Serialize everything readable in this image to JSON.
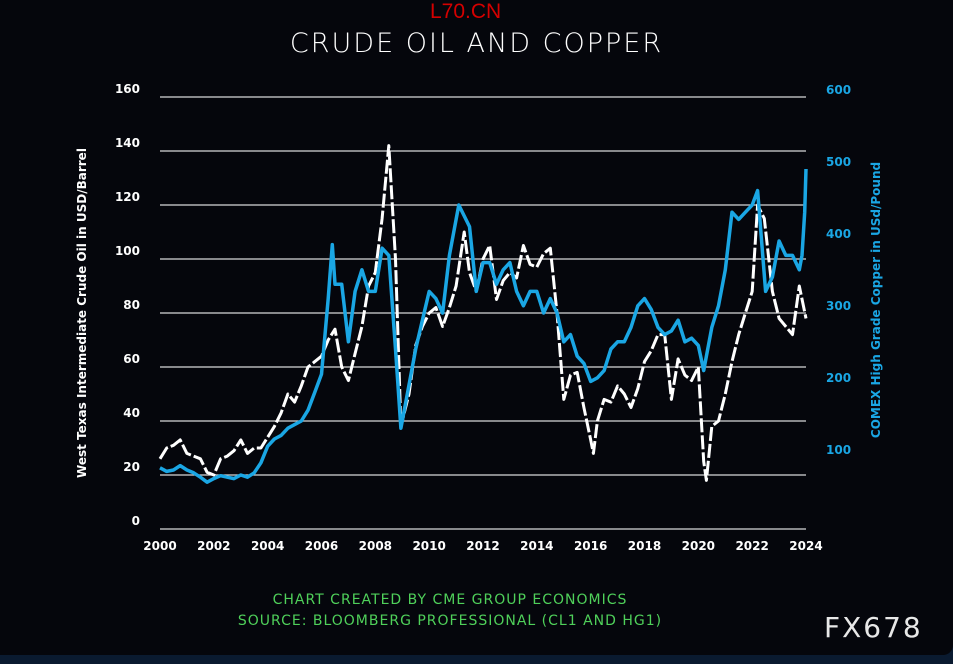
{
  "watermark": "L70.CN",
  "footer": {
    "credit": "CHART CREATED BY CME GROUP ECONOMICS",
    "source": "SOURCE: BLOOMBERG PROFESSIONAL (CL1 AND HG1)",
    "code": "FX678"
  },
  "colors": {
    "oil": "#ffffff",
    "copper": "#1aa6e4",
    "credit": "#4fd05a",
    "background": "#05060c"
  },
  "chart_data": {
    "type": "line",
    "title": "CRUDE OIL AND COPPER",
    "xlabel": "",
    "ylabel": "West Texas Intermediate Crude Oil in USD/Barrel",
    "y2label": "COMEX High Grade Copper in USd/Pound",
    "xlim": [
      2000,
      2024
    ],
    "ylim": [
      0,
      160
    ],
    "y2lim": [
      0,
      600
    ],
    "xticks": [
      "2000",
      "2002",
      "2004",
      "2006",
      "2008",
      "2010",
      "2012",
      "2014",
      "2016",
      "2018",
      "2020",
      "2022",
      "2024"
    ],
    "yticks": [
      "0",
      "20",
      "40",
      "60",
      "80",
      "100",
      "120",
      "140",
      "160"
    ],
    "y2ticks": [
      "100",
      "200",
      "300",
      "400",
      "500",
      "600"
    ],
    "grid": true,
    "series": [
      {
        "name": "WTI Crude Oil",
        "axis": "left",
        "style": "dashed",
        "points": [
          [
            2000,
            26
          ],
          [
            2000.25,
            30
          ],
          [
            2000.5,
            31
          ],
          [
            2000.75,
            33
          ],
          [
            2001,
            28
          ],
          [
            2001.25,
            27
          ],
          [
            2001.5,
            26
          ],
          [
            2001.75,
            21
          ],
          [
            2002,
            20
          ],
          [
            2002.25,
            26
          ],
          [
            2002.5,
            27
          ],
          [
            2002.75,
            29
          ],
          [
            2003,
            33
          ],
          [
            2003.25,
            28
          ],
          [
            2003.5,
            30
          ],
          [
            2003.75,
            30
          ],
          [
            2004,
            34
          ],
          [
            2004.25,
            38
          ],
          [
            2004.5,
            43
          ],
          [
            2004.75,
            50
          ],
          [
            2005,
            47
          ],
          [
            2005.25,
            53
          ],
          [
            2005.5,
            60
          ],
          [
            2005.75,
            62
          ],
          [
            2006,
            64
          ],
          [
            2006.25,
            70
          ],
          [
            2006.5,
            74
          ],
          [
            2006.75,
            60
          ],
          [
            2007,
            55
          ],
          [
            2007.25,
            65
          ],
          [
            2007.5,
            75
          ],
          [
            2007.75,
            90
          ],
          [
            2008,
            95
          ],
          [
            2008.25,
            115
          ],
          [
            2008.5,
            142
          ],
          [
            2008.75,
            100
          ],
          [
            2008.95,
            38
          ],
          [
            2009.25,
            50
          ],
          [
            2009.5,
            68
          ],
          [
            2009.75,
            75
          ],
          [
            2010,
            80
          ],
          [
            2010.25,
            82
          ],
          [
            2010.5,
            75
          ],
          [
            2010.75,
            82
          ],
          [
            2011,
            90
          ],
          [
            2011.3,
            110
          ],
          [
            2011.5,
            95
          ],
          [
            2011.75,
            88
          ],
          [
            2012,
            100
          ],
          [
            2012.25,
            105
          ],
          [
            2012.5,
            85
          ],
          [
            2012.75,
            92
          ],
          [
            2013,
            95
          ],
          [
            2013.25,
            93
          ],
          [
            2013.5,
            105
          ],
          [
            2013.75,
            98
          ],
          [
            2014,
            97
          ],
          [
            2014.25,
            102
          ],
          [
            2014.5,
            104
          ],
          [
            2014.75,
            80
          ],
          [
            2015,
            48
          ],
          [
            2015.25,
            57
          ],
          [
            2015.5,
            58
          ],
          [
            2015.75,
            45
          ],
          [
            2016,
            33
          ],
          [
            2016.1,
            28
          ],
          [
            2016.25,
            40
          ],
          [
            2016.5,
            48
          ],
          [
            2016.75,
            47
          ],
          [
            2017,
            53
          ],
          [
            2017.25,
            50
          ],
          [
            2017.5,
            45
          ],
          [
            2017.75,
            52
          ],
          [
            2018,
            62
          ],
          [
            2018.25,
            66
          ],
          [
            2018.5,
            72
          ],
          [
            2018.75,
            72
          ],
          [
            2019,
            48
          ],
          [
            2019.25,
            63
          ],
          [
            2019.5,
            57
          ],
          [
            2019.75,
            55
          ],
          [
            2020,
            60
          ],
          [
            2020.2,
            25
          ],
          [
            2020.3,
            18
          ],
          [
            2020.5,
            38
          ],
          [
            2020.75,
            40
          ],
          [
            2021,
            50
          ],
          [
            2021.25,
            62
          ],
          [
            2021.5,
            72
          ],
          [
            2021.75,
            80
          ],
          [
            2022,
            88
          ],
          [
            2022.2,
            120
          ],
          [
            2022.45,
            115
          ],
          [
            2022.75,
            88
          ],
          [
            2023,
            78
          ],
          [
            2023.25,
            75
          ],
          [
            2023.5,
            72
          ],
          [
            2023.75,
            90
          ],
          [
            2024,
            78
          ]
        ]
      },
      {
        "name": "COMEX Copper",
        "axis": "right",
        "style": "solid",
        "points": [
          [
            2000,
            85
          ],
          [
            2000.25,
            80
          ],
          [
            2000.5,
            82
          ],
          [
            2000.75,
            88
          ],
          [
            2001,
            82
          ],
          [
            2001.25,
            78
          ],
          [
            2001.5,
            72
          ],
          [
            2001.75,
            65
          ],
          [
            2002,
            70
          ],
          [
            2002.25,
            74
          ],
          [
            2002.5,
            72
          ],
          [
            2002.75,
            70
          ],
          [
            2003,
            75
          ],
          [
            2003.25,
            72
          ],
          [
            2003.5,
            78
          ],
          [
            2003.75,
            92
          ],
          [
            2004,
            115
          ],
          [
            2004.25,
            125
          ],
          [
            2004.5,
            130
          ],
          [
            2004.75,
            140
          ],
          [
            2005,
            145
          ],
          [
            2005.25,
            150
          ],
          [
            2005.5,
            165
          ],
          [
            2005.75,
            190
          ],
          [
            2006,
            215
          ],
          [
            2006.25,
            320
          ],
          [
            2006.4,
            395
          ],
          [
            2006.5,
            340
          ],
          [
            2006.75,
            340
          ],
          [
            2007,
            260
          ],
          [
            2007.25,
            330
          ],
          [
            2007.5,
            360
          ],
          [
            2007.75,
            330
          ],
          [
            2008,
            330
          ],
          [
            2008.25,
            390
          ],
          [
            2008.5,
            380
          ],
          [
            2008.75,
            250
          ],
          [
            2008.95,
            140
          ],
          [
            2009.25,
            200
          ],
          [
            2009.5,
            250
          ],
          [
            2009.75,
            290
          ],
          [
            2010,
            330
          ],
          [
            2010.25,
            320
          ],
          [
            2010.5,
            300
          ],
          [
            2010.75,
            380
          ],
          [
            2011,
            430
          ],
          [
            2011.1,
            450
          ],
          [
            2011.5,
            420
          ],
          [
            2011.75,
            330
          ],
          [
            2012,
            370
          ],
          [
            2012.25,
            370
          ],
          [
            2012.5,
            340
          ],
          [
            2012.75,
            360
          ],
          [
            2013,
            370
          ],
          [
            2013.25,
            330
          ],
          [
            2013.5,
            310
          ],
          [
            2013.75,
            330
          ],
          [
            2014,
            330
          ],
          [
            2014.25,
            300
          ],
          [
            2014.5,
            320
          ],
          [
            2014.75,
            300
          ],
          [
            2015,
            260
          ],
          [
            2015.25,
            270
          ],
          [
            2015.5,
            240
          ],
          [
            2015.75,
            230
          ],
          [
            2016,
            205
          ],
          [
            2016.25,
            210
          ],
          [
            2016.5,
            220
          ],
          [
            2016.75,
            250
          ],
          [
            2017,
            260
          ],
          [
            2017.25,
            260
          ],
          [
            2017.5,
            280
          ],
          [
            2017.75,
            310
          ],
          [
            2018,
            320
          ],
          [
            2018.25,
            305
          ],
          [
            2018.5,
            280
          ],
          [
            2018.75,
            270
          ],
          [
            2019,
            275
          ],
          [
            2019.25,
            290
          ],
          [
            2019.5,
            260
          ],
          [
            2019.75,
            265
          ],
          [
            2020,
            255
          ],
          [
            2020.2,
            220
          ],
          [
            2020.5,
            280
          ],
          [
            2020.75,
            310
          ],
          [
            2021,
            360
          ],
          [
            2021.25,
            440
          ],
          [
            2021.5,
            430
          ],
          [
            2021.75,
            440
          ],
          [
            2022,
            450
          ],
          [
            2022.2,
            470
          ],
          [
            2022.5,
            330
          ],
          [
            2022.75,
            350
          ],
          [
            2023,
            400
          ],
          [
            2023.25,
            380
          ],
          [
            2023.5,
            380
          ],
          [
            2023.75,
            360
          ],
          [
            2023.85,
            380
          ],
          [
            2023.95,
            440
          ],
          [
            2024,
            500
          ]
        ]
      }
    ]
  }
}
